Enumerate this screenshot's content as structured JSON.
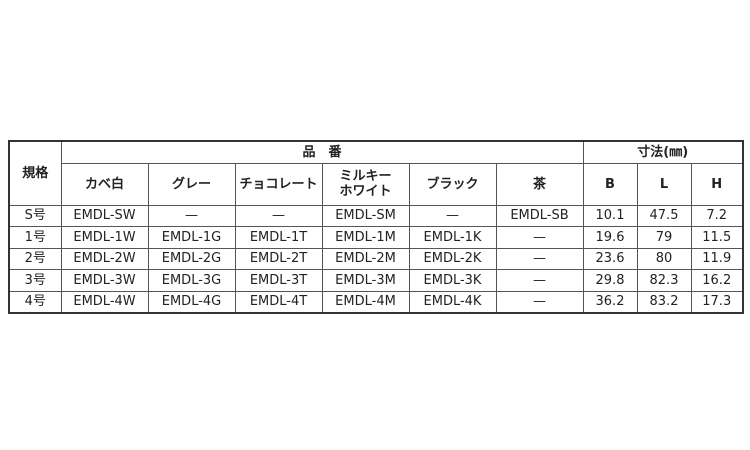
{
  "header": {
    "spec": "規格",
    "part_number": "品　番",
    "dimensions": "寸法(㎜)",
    "colors": [
      "カベ白",
      "グレー",
      "チョコレート",
      "ミルキー\nホワイト",
      "ブラック",
      "茶"
    ],
    "dims": [
      "B",
      "L",
      "H"
    ]
  },
  "rows": [
    {
      "spec": "S号",
      "parts": [
        "EMDL-SW",
        "—",
        "—",
        "EMDL-SM",
        "—",
        "EMDL-SB"
      ],
      "dims": [
        "10.1",
        "47.5",
        "7.2"
      ]
    },
    {
      "spec": "1号",
      "parts": [
        "EMDL-1W",
        "EMDL-1G",
        "EMDL-1T",
        "EMDL-1M",
        "EMDL-1K",
        "—"
      ],
      "dims": [
        "19.6",
        "79",
        "11.5"
      ]
    },
    {
      "spec": "2号",
      "parts": [
        "EMDL-2W",
        "EMDL-2G",
        "EMDL-2T",
        "EMDL-2M",
        "EMDL-2K",
        "—"
      ],
      "dims": [
        "23.6",
        "80",
        "11.9"
      ]
    },
    {
      "spec": "3号",
      "parts": [
        "EMDL-3W",
        "EMDL-3G",
        "EMDL-3T",
        "EMDL-3M",
        "EMDL-3K",
        "—"
      ],
      "dims": [
        "29.8",
        "82.3",
        "16.2"
      ]
    },
    {
      "spec": "4号",
      "parts": [
        "EMDL-4W",
        "EMDL-4G",
        "EMDL-4T",
        "EMDL-4M",
        "EMDL-4K",
        "—"
      ],
      "dims": [
        "36.2",
        "83.2",
        "17.3"
      ]
    }
  ]
}
